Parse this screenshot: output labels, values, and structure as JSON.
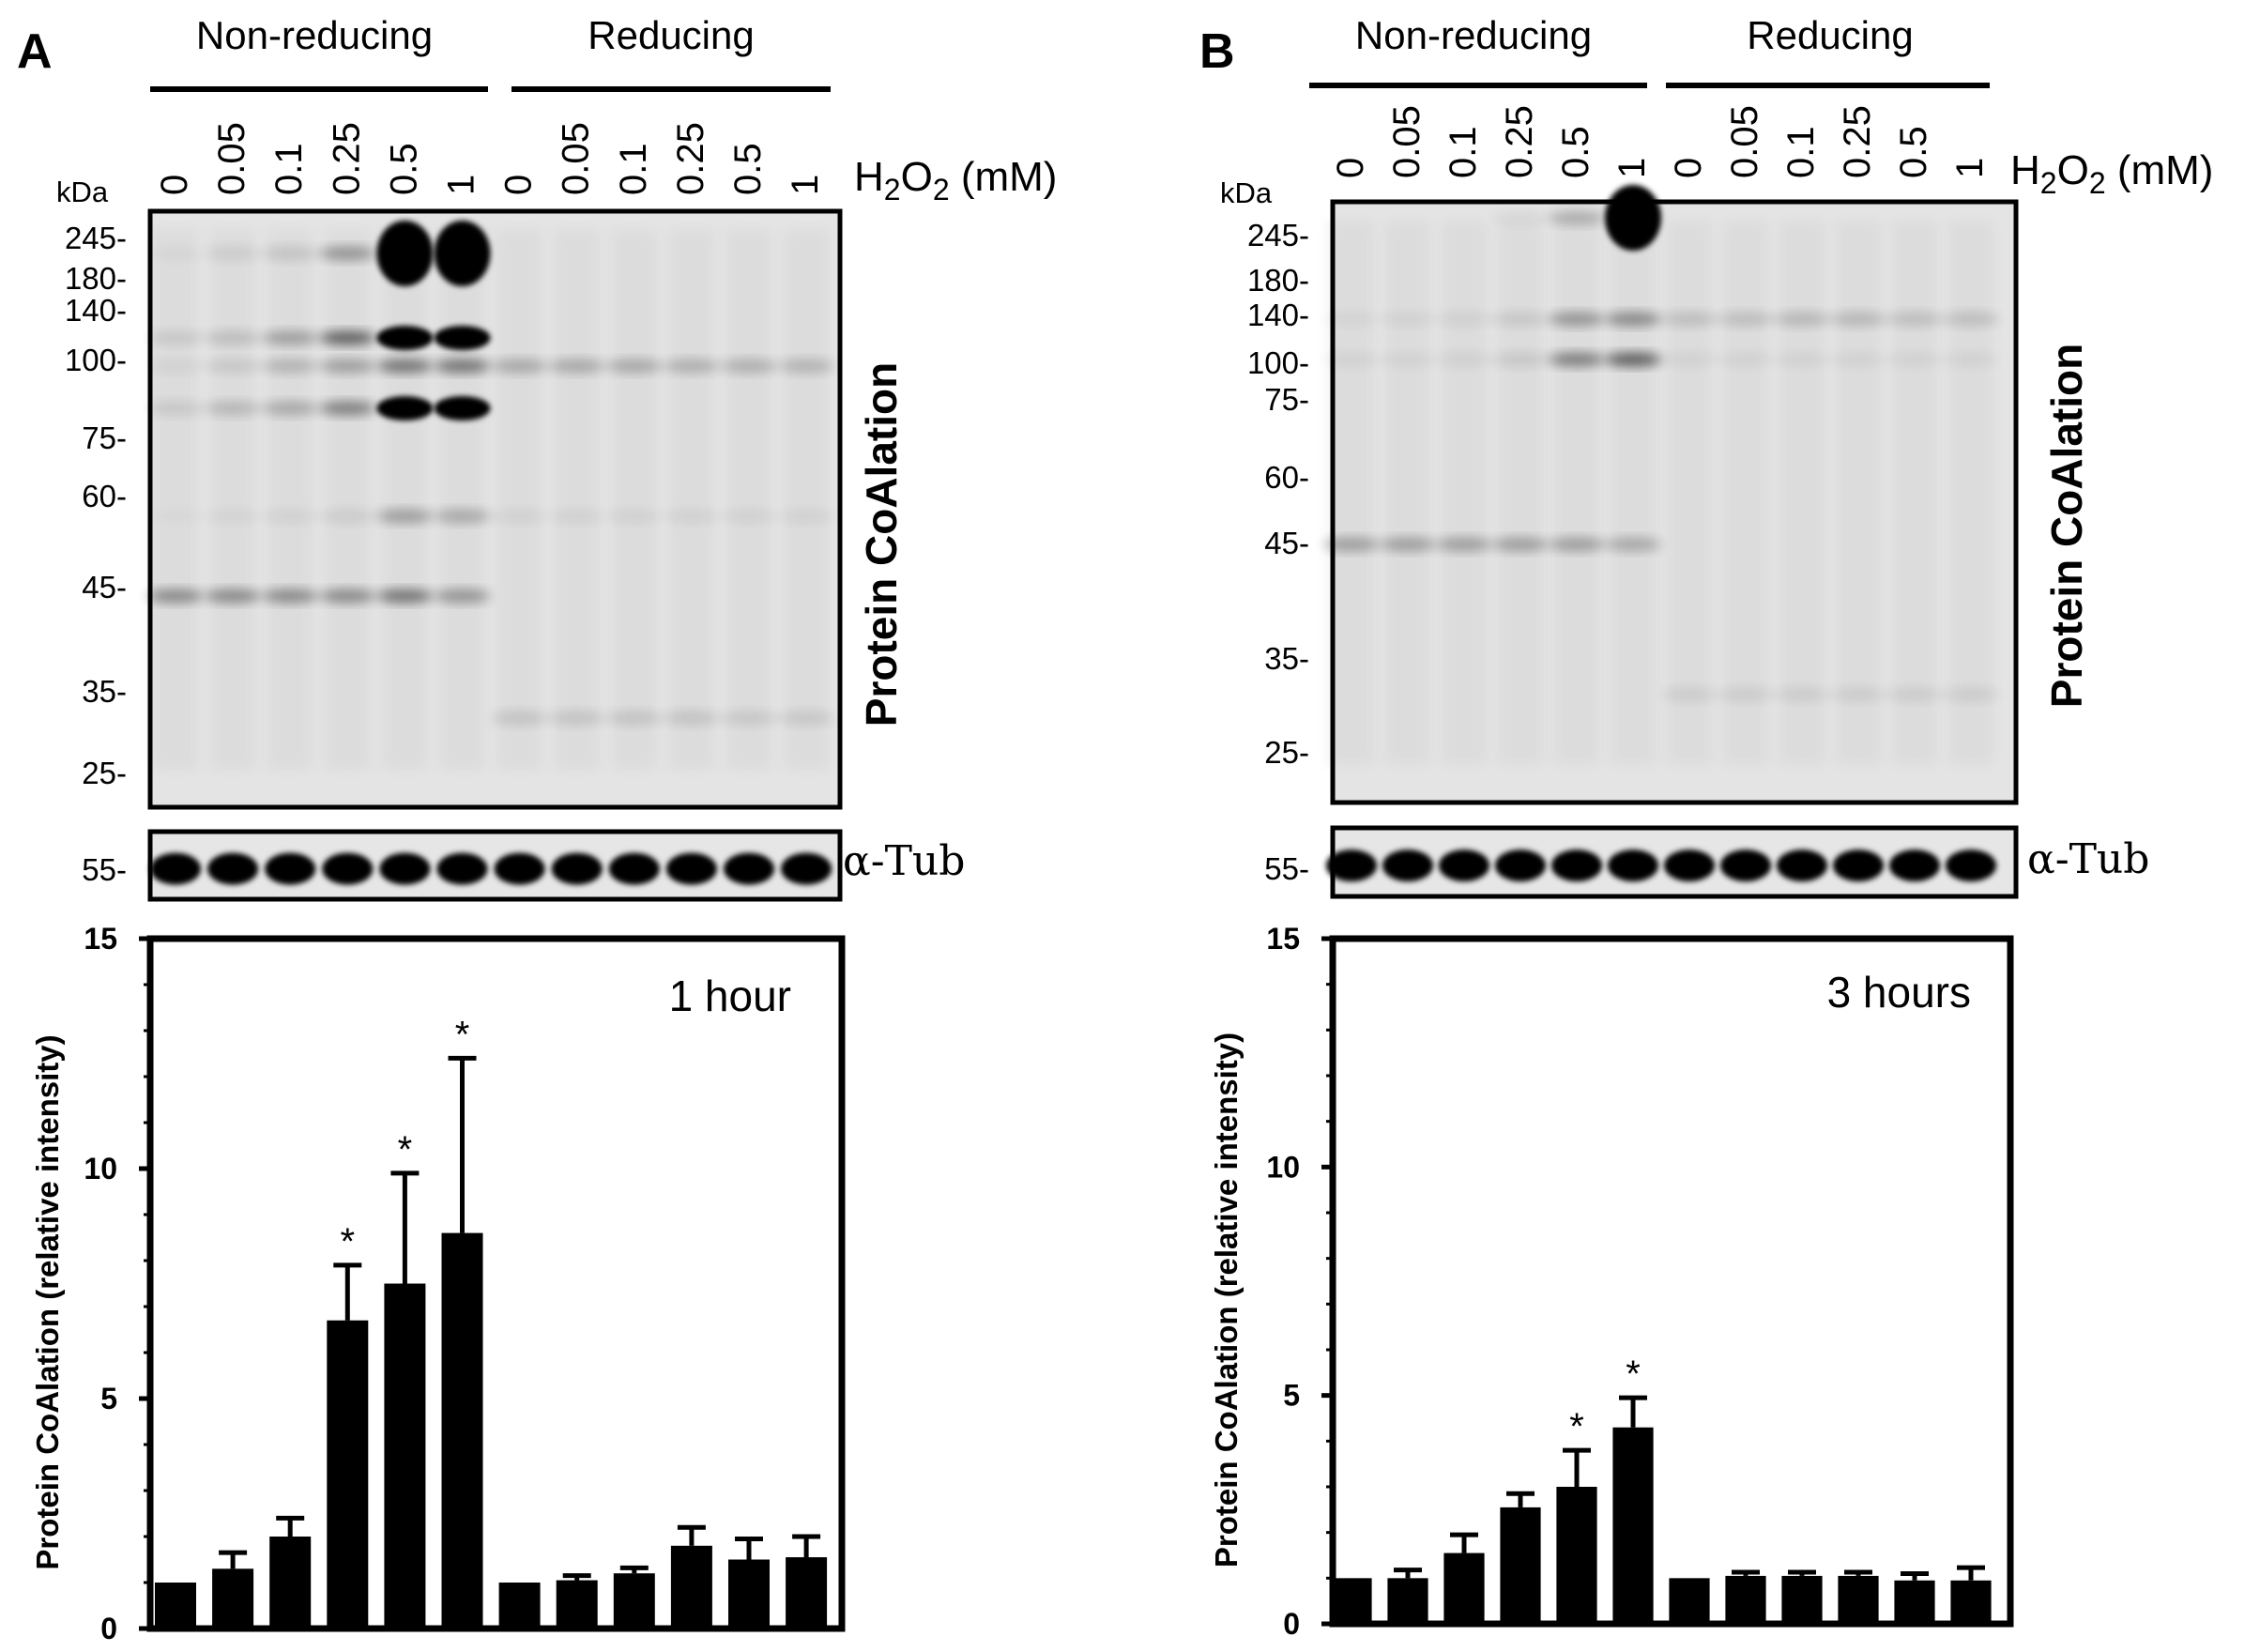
{
  "panels": [
    {
      "letter": "A",
      "group_labels": [
        "Non-reducing",
        "Reducing"
      ],
      "concentrations": [
        "0",
        "0.05",
        "0.1",
        "0.25",
        "0.5",
        "1",
        "0",
        "0.05",
        "0.1",
        "0.25",
        "0.5",
        "1"
      ],
      "treatment_label": "H2O2 (mM)",
      "kda_label": "kDa",
      "mw_markers": [
        "245-",
        "180-",
        "140-",
        "100-",
        "75-",
        "60-",
        "45-",
        "35-",
        "25-"
      ],
      "blot_label": "Protein CoAlation",
      "tubulin_label": "α-Tub",
      "tubulin_marker": "55-"
    },
    {
      "letter": "B",
      "group_labels": [
        "Non-reducing",
        "Reducing"
      ],
      "concentrations": [
        "0",
        "0.05",
        "0.1",
        "0.25",
        "0.5",
        "1",
        "0",
        "0.05",
        "0.1",
        "0.25",
        "0.5",
        "1"
      ],
      "treatment_label": "H2O2 (mM)",
      "kda_label": "kDa",
      "mw_markers": [
        "245-",
        "180-",
        "140-",
        "100-",
        "75-",
        "60-",
        "45-",
        "35-",
        "25-"
      ],
      "blot_label": "Protein CoAlation",
      "tubulin_label": "α-Tub",
      "tubulin_marker": "55-"
    }
  ],
  "chart_data": [
    {
      "type": "bar",
      "annotation": "1 hour",
      "ylabel": "Protein  CoAlation (relative intensity)",
      "ylim": [
        0,
        15
      ],
      "yticks": [
        "0",
        "5",
        "10",
        "15"
      ],
      "values": [
        1.0,
        1.3,
        2.0,
        6.7,
        7.5,
        8.6,
        1.0,
        1.05,
        1.2,
        1.8,
        1.5,
        1.55
      ],
      "errors": [
        0.0,
        0.35,
        0.4,
        1.2,
        2.4,
        3.8,
        0.0,
        0.1,
        0.12,
        0.4,
        0.45,
        0.45
      ],
      "significance": [
        "",
        "",
        "",
        "*",
        "*",
        "*",
        "",
        "",
        "",
        "",
        "",
        ""
      ],
      "bar_color": "#000000"
    },
    {
      "type": "bar",
      "annotation": "3 hours",
      "ylabel": "Protein  CoAlation (relative intensity)",
      "ylim": [
        0,
        15
      ],
      "yticks": [
        "0",
        "5",
        "10",
        "15"
      ],
      "values": [
        1.0,
        1.0,
        1.55,
        2.55,
        3.0,
        4.3,
        1.0,
        1.05,
        1.05,
        1.05,
        0.95,
        0.95
      ],
      "errors": [
        0.0,
        0.18,
        0.4,
        0.3,
        0.8,
        0.65,
        0.0,
        0.08,
        0.08,
        0.08,
        0.15,
        0.28
      ],
      "significance": [
        "",
        "",
        "",
        "",
        "*",
        "*",
        "",
        "",
        "",
        "",
        "",
        ""
      ],
      "bar_color": "#000000"
    }
  ]
}
